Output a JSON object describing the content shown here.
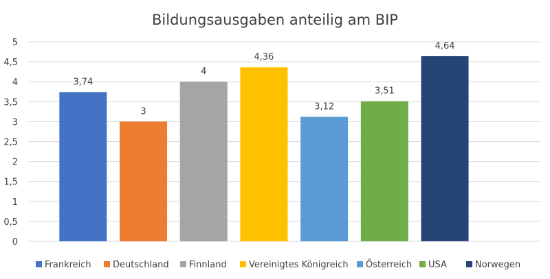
{
  "chart_data": {
    "type": "bar",
    "title": "Bildungsausgaben anteilig am BIP",
    "xlabel": "",
    "ylabel": "",
    "ylim": [
      0,
      5
    ],
    "yticks": [
      0,
      0.5,
      1,
      1.5,
      2,
      2.5,
      3,
      3.5,
      4,
      4.5,
      5
    ],
    "ytick_labels": [
      "0",
      "0,5",
      "1",
      "1,5",
      "2",
      "2,5",
      "3",
      "3,5",
      "4",
      "4,5",
      "5"
    ],
    "grid": true,
    "legend_position": "bottom",
    "series": [
      {
        "name": "Frankreich",
        "value": 3.74,
        "label": "3,74",
        "color": "#4472c4"
      },
      {
        "name": "Deutschland",
        "value": 3,
        "label": "3",
        "color": "#ed7d31"
      },
      {
        "name": "Finnland",
        "value": 4,
        "label": "4",
        "color": "#a5a5a5"
      },
      {
        "name": "Vereinigtes Königreich",
        "value": 4.36,
        "label": "4,36",
        "color": "#ffc000"
      },
      {
        "name": "Österreich",
        "value": 3.12,
        "label": "3,12",
        "color": "#5b9bd5"
      },
      {
        "name": "USA",
        "value": 3.51,
        "label": "3,51",
        "color": "#70ad47"
      },
      {
        "name": "Norwegen",
        "value": 4.64,
        "label": "4,64",
        "color": "#264478"
      }
    ]
  }
}
